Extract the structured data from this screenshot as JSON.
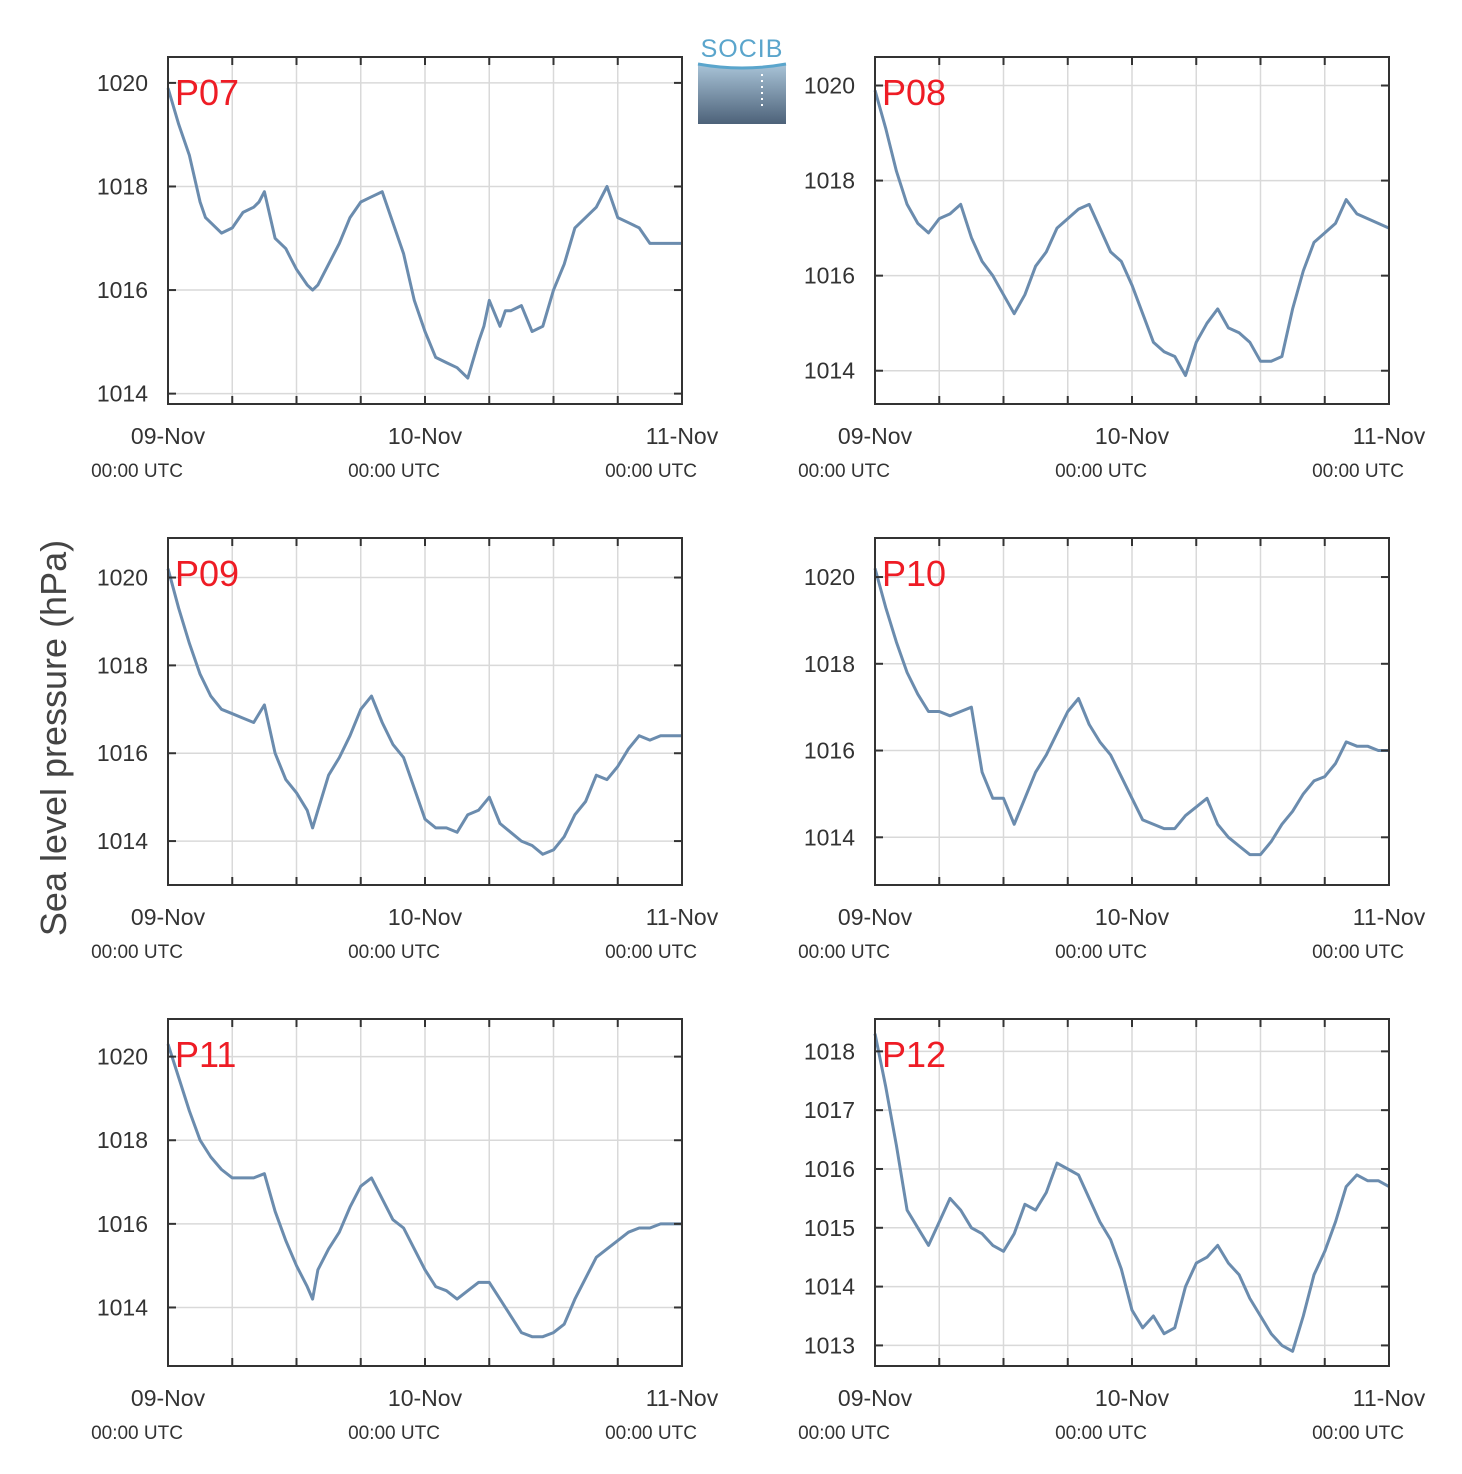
{
  "ylabel": "Sea level pressure (hPa)",
  "logo": {
    "text": "SOCIB"
  },
  "colors": {
    "line": "#6b8cae",
    "station_label": "#ee1c25",
    "grid": "#d9d9d9",
    "axis": "#333333"
  },
  "chart_data": [
    {
      "type": "line",
      "title": "P07",
      "x_ticks": [
        {
          "date": "09-Nov",
          "time": "00:00 UTC"
        },
        {
          "date": "10-Nov",
          "time": "00:00 UTC"
        },
        {
          "date": "11-Nov",
          "time": "00:00 UTC"
        }
      ],
      "xlim_hours": [
        0,
        48
      ],
      "ylim": [
        1013.8,
        1020.5
      ],
      "yticks": [
        1014,
        1016,
        1018,
        1020
      ],
      "grid": true,
      "series": [
        {
          "x_hours": [
            0,
            1,
            2,
            3,
            3.5,
            4,
            5,
            6,
            7,
            8,
            8.5,
            9,
            10,
            11,
            11.5,
            12,
            13,
            13.5,
            14,
            15,
            16,
            17,
            18,
            19,
            20,
            21,
            22,
            23,
            24,
            25,
            26,
            27,
            28,
            29,
            29.5,
            30,
            31,
            31.5,
            32,
            33,
            34,
            35,
            36,
            37,
            38,
            39,
            40,
            41,
            42,
            43,
            44,
            45,
            45.5,
            46,
            47,
            48
          ],
          "values": [
            1019.9,
            1019.2,
            1018.6,
            1017.7,
            1017.4,
            1017.3,
            1017.1,
            1017.2,
            1017.5,
            1017.6,
            1017.7,
            1017.9,
            1017.0,
            1016.8,
            1016.6,
            1016.4,
            1016.1,
            1016.0,
            1016.1,
            1016.5,
            1016.9,
            1017.4,
            1017.7,
            1017.8,
            1017.9,
            1017.3,
            1016.7,
            1015.8,
            1015.2,
            1014.7,
            1014.6,
            1014.5,
            1014.3,
            1015.0,
            1015.3,
            1015.8,
            1015.3,
            1015.6,
            1015.6,
            1015.7,
            1015.2,
            1015.3,
            1016.0,
            1016.5,
            1017.2,
            1017.4,
            1017.6,
            1018.0,
            1017.4,
            1017.3,
            1017.2,
            1016.9,
            1016.9,
            1016.9,
            1016.9,
            1016.9
          ]
        }
      ]
    },
    {
      "type": "line",
      "title": "P08",
      "x_ticks": [
        {
          "date": "09-Nov",
          "time": "00:00 UTC"
        },
        {
          "date": "10-Nov",
          "time": "00:00 UTC"
        },
        {
          "date": "11-Nov",
          "time": "00:00 UTC"
        }
      ],
      "xlim_hours": [
        0,
        48
      ],
      "ylim": [
        1013.3,
        1020.6
      ],
      "yticks": [
        1014,
        1016,
        1018,
        1020
      ],
      "grid": true,
      "series": [
        {
          "x_hours": [
            0,
            1,
            2,
            3,
            4,
            5,
            6,
            7,
            7.5,
            8,
            9,
            10,
            11,
            12,
            13,
            14,
            15,
            16,
            17,
            18,
            19,
            20,
            21,
            22,
            23,
            24,
            25,
            26,
            27,
            28,
            29,
            30,
            31,
            32,
            33,
            34,
            35,
            36,
            37,
            38,
            39,
            40,
            41,
            42,
            43,
            44,
            45,
            46,
            47,
            48
          ],
          "values": [
            1019.9,
            1019.1,
            1018.2,
            1017.5,
            1017.1,
            1016.9,
            1017.2,
            1017.3,
            1017.4,
            1017.5,
            1016.8,
            1016.3,
            1016.0,
            1015.6,
            1015.2,
            1015.6,
            1016.2,
            1016.5,
            1017.0,
            1017.2,
            1017.4,
            1017.5,
            1017.0,
            1016.5,
            1016.3,
            1015.8,
            1015.2,
            1014.6,
            1014.4,
            1014.3,
            1013.9,
            1014.6,
            1015.0,
            1015.3,
            1014.9,
            1014.8,
            1014.6,
            1014.2,
            1014.2,
            1014.3,
            1015.3,
            1016.1,
            1016.7,
            1016.9,
            1017.1,
            1017.6,
            1017.3,
            1017.2,
            1017.1,
            1017.0
          ]
        }
      ]
    },
    {
      "type": "line",
      "title": "P09",
      "x_ticks": [
        {
          "date": "09-Nov",
          "time": "00:00 UTC"
        },
        {
          "date": "10-Nov",
          "time": "00:00 UTC"
        },
        {
          "date": "11-Nov",
          "time": "00:00 UTC"
        }
      ],
      "xlim_hours": [
        0,
        48
      ],
      "ylim": [
        1013.0,
        1020.9
      ],
      "yticks": [
        1014,
        1016,
        1018,
        1020
      ],
      "grid": true,
      "series": [
        {
          "x_hours": [
            0,
            1,
            2,
            3,
            4,
            5,
            6,
            7,
            8,
            9,
            10,
            11,
            12,
            13,
            13.5,
            14,
            15,
            16,
            17,
            18,
            19,
            20,
            21,
            22,
            23,
            24,
            25,
            26,
            27,
            28,
            29,
            30,
            31,
            32,
            33,
            34,
            35,
            36,
            37,
            38,
            39,
            40,
            41,
            42,
            43,
            44,
            45,
            46,
            47,
            48
          ],
          "values": [
            1020.2,
            1019.3,
            1018.5,
            1017.8,
            1017.3,
            1017.0,
            1016.9,
            1016.8,
            1016.7,
            1017.1,
            1016.0,
            1015.4,
            1015.1,
            1014.7,
            1014.3,
            1014.7,
            1015.5,
            1015.9,
            1016.4,
            1017.0,
            1017.3,
            1016.7,
            1016.2,
            1015.9,
            1015.2,
            1014.5,
            1014.3,
            1014.3,
            1014.2,
            1014.6,
            1014.7,
            1015.0,
            1014.4,
            1014.2,
            1014.0,
            1013.9,
            1013.7,
            1013.8,
            1014.1,
            1014.6,
            1014.9,
            1015.5,
            1015.4,
            1015.7,
            1016.1,
            1016.4,
            1016.3,
            1016.4,
            1016.4,
            1016.4
          ]
        }
      ]
    },
    {
      "type": "line",
      "title": "P10",
      "x_ticks": [
        {
          "date": "09-Nov",
          "time": "00:00 UTC"
        },
        {
          "date": "10-Nov",
          "time": "00:00 UTC"
        },
        {
          "date": "11-Nov",
          "time": "00:00 UTC"
        }
      ],
      "xlim_hours": [
        0,
        48
      ],
      "ylim": [
        1012.9,
        1020.9
      ],
      "yticks": [
        1014,
        1016,
        1018,
        1020
      ],
      "grid": true,
      "series": [
        {
          "x_hours": [
            0,
            1,
            2,
            3,
            4,
            5,
            6,
            7,
            8,
            9,
            10,
            11,
            12,
            13,
            14,
            15,
            16,
            17,
            18,
            19,
            20,
            21,
            22,
            23,
            24,
            25,
            26,
            27,
            28,
            29,
            30,
            31,
            32,
            33,
            34,
            35,
            36,
            37,
            38,
            39,
            40,
            41,
            42,
            43,
            44,
            45,
            46,
            47,
            48
          ],
          "values": [
            1020.2,
            1019.3,
            1018.5,
            1017.8,
            1017.3,
            1016.9,
            1016.9,
            1016.8,
            1016.9,
            1017.0,
            1015.5,
            1014.9,
            1014.9,
            1014.3,
            1014.9,
            1015.5,
            1015.9,
            1016.4,
            1016.9,
            1017.2,
            1016.6,
            1016.2,
            1015.9,
            1015.4,
            1014.9,
            1014.4,
            1014.3,
            1014.2,
            1014.2,
            1014.5,
            1014.7,
            1014.9,
            1014.3,
            1014.0,
            1013.8,
            1013.6,
            1013.6,
            1013.9,
            1014.3,
            1014.6,
            1015.0,
            1015.3,
            1015.4,
            1015.7,
            1016.2,
            1016.1,
            1016.1,
            1016.0,
            1016.0
          ]
        }
      ]
    },
    {
      "type": "line",
      "title": "P11",
      "x_ticks": [
        {
          "date": "09-Nov",
          "time": "00:00 UTC"
        },
        {
          "date": "10-Nov",
          "time": "00:00 UTC"
        },
        {
          "date": "11-Nov",
          "time": "00:00 UTC"
        }
      ],
      "xlim_hours": [
        0,
        48
      ],
      "ylim": [
        1012.6,
        1020.9
      ],
      "yticks": [
        1014,
        1016,
        1018,
        1020
      ],
      "grid": true,
      "series": [
        {
          "x_hours": [
            0,
            1,
            2,
            3,
            4,
            5,
            6,
            7,
            8,
            9,
            10,
            11,
            12,
            13,
            13.5,
            14,
            15,
            16,
            17,
            18,
            19,
            20,
            21,
            22,
            23,
            24,
            25,
            26,
            27,
            28,
            29,
            30,
            31,
            32,
            33,
            34,
            35,
            36,
            37,
            38,
            39,
            40,
            41,
            42,
            43,
            44,
            45,
            46,
            47,
            48
          ],
          "values": [
            1020.3,
            1019.5,
            1018.7,
            1018.0,
            1017.6,
            1017.3,
            1017.1,
            1017.1,
            1017.1,
            1017.2,
            1016.3,
            1015.6,
            1015.0,
            1014.5,
            1014.2,
            1014.9,
            1015.4,
            1015.8,
            1016.4,
            1016.9,
            1017.1,
            1016.6,
            1016.1,
            1015.9,
            1015.4,
            1014.9,
            1014.5,
            1014.4,
            1014.2,
            1014.4,
            1014.6,
            1014.6,
            1014.2,
            1013.8,
            1013.4,
            1013.3,
            1013.3,
            1013.4,
            1013.6,
            1014.2,
            1014.7,
            1015.2,
            1015.4,
            1015.6,
            1015.8,
            1015.9,
            1015.9,
            1016.0,
            1016.0,
            1016.0
          ]
        }
      ]
    },
    {
      "type": "line",
      "title": "P12",
      "x_ticks": [
        {
          "date": "09-Nov",
          "time": "00:00 UTC"
        },
        {
          "date": "10-Nov",
          "time": "00:00 UTC"
        },
        {
          "date": "11-Nov",
          "time": "00:00 UTC"
        }
      ],
      "xlim_hours": [
        0,
        48
      ],
      "ylim": [
        1012.65,
        1018.55
      ],
      "yticks": [
        1013,
        1014,
        1015,
        1016,
        1017,
        1018
      ],
      "grid": true,
      "series": [
        {
          "x_hours": [
            0,
            1,
            2,
            3,
            4,
            5,
            6,
            7,
            8,
            9,
            10,
            11,
            12,
            13,
            14,
            15,
            16,
            17,
            18,
            19,
            20,
            21,
            22,
            23,
            24,
            25,
            26,
            27,
            28,
            29,
            30,
            31,
            32,
            33,
            34,
            35,
            36,
            37,
            38,
            39,
            40,
            41,
            42,
            43,
            44,
            45,
            46,
            47,
            48
          ],
          "values": [
            1018.3,
            1017.4,
            1016.4,
            1015.3,
            1015.0,
            1014.7,
            1015.1,
            1015.5,
            1015.3,
            1015.0,
            1014.9,
            1014.7,
            1014.6,
            1014.9,
            1015.4,
            1015.3,
            1015.6,
            1016.1,
            1016.0,
            1015.9,
            1015.5,
            1015.1,
            1014.8,
            1014.3,
            1013.6,
            1013.3,
            1013.5,
            1013.2,
            1013.3,
            1014.0,
            1014.4,
            1014.5,
            1014.7,
            1014.4,
            1014.2,
            1013.8,
            1013.5,
            1013.2,
            1013.0,
            1012.9,
            1013.5,
            1014.2,
            1014.6,
            1015.1,
            1015.7,
            1015.9,
            1015.8,
            1015.8,
            1015.7
          ]
        }
      ]
    }
  ]
}
